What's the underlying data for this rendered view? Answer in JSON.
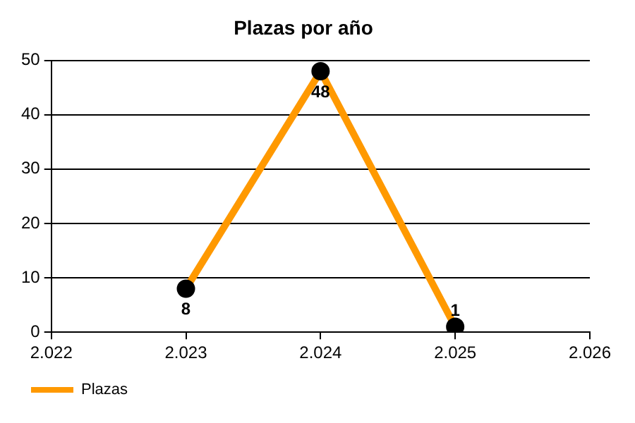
{
  "chart_data": {
    "type": "line",
    "title": "Plazas por año",
    "x": [
      2023,
      2024,
      2025
    ],
    "series": [
      {
        "name": "Plazas",
        "color": "#ff9900",
        "values": [
          8,
          48,
          1
        ]
      }
    ],
    "xlim": [
      2022,
      2026
    ],
    "xticks": [
      {
        "value": 2022,
        "label": "2.022"
      },
      {
        "value": 2023,
        "label": "2.023"
      },
      {
        "value": 2024,
        "label": "2.024"
      },
      {
        "value": 2025,
        "label": "2.025"
      },
      {
        "value": 2026,
        "label": "2.026"
      }
    ],
    "ylim": [
      0,
      50
    ],
    "yticks": [
      0,
      10,
      20,
      30,
      40,
      50
    ],
    "grid": "y",
    "legend": "bottom left",
    "marker": "circle",
    "line_style": "solid",
    "data_labels": true
  }
}
